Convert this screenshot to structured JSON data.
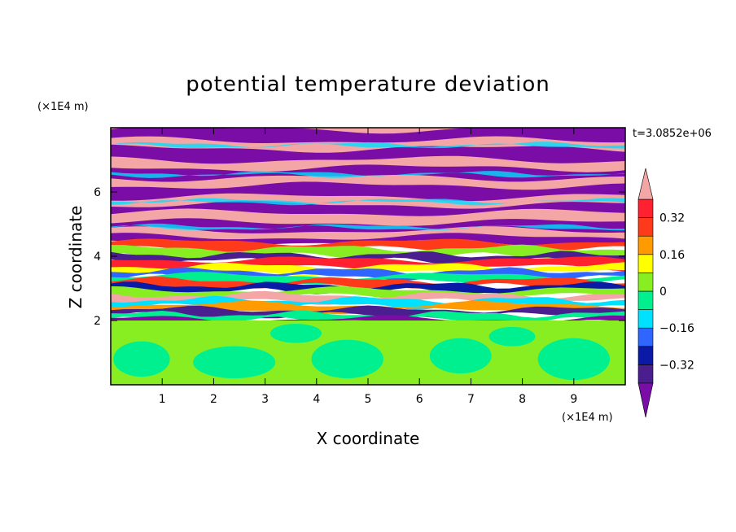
{
  "chart_data": {
    "type": "heatmap",
    "title": "potential temperature deviation",
    "xlabel": "X coordinate",
    "ylabel": "Z coordinate",
    "x_unit": "(×1E4 m)",
    "z_unit": "(×1E4 m)",
    "time_label": "t=3.0852e+06",
    "xlim": [
      0,
      10
    ],
    "zlim": [
      0,
      8
    ],
    "x_ticks": [
      "1",
      "2",
      "3",
      "4",
      "5",
      "6",
      "7",
      "8",
      "9"
    ],
    "z_ticks": [
      "2",
      "4",
      "6"
    ],
    "colorbar": {
      "levels": [
        -0.4,
        -0.32,
        -0.24,
        -0.16,
        -0.08,
        0,
        0.08,
        0.16,
        0.24,
        0.32,
        0.4
      ],
      "labels": [
        "0.32",
        "0.16",
        "0",
        "−0.16",
        "−0.32"
      ],
      "colors": [
        "#7a0da6",
        "#4b1e8f",
        "#0a1aa6",
        "#2f66ff",
        "#00e0ff",
        "#00f090",
        "#88ee22",
        "#ffff00",
        "#ff9a00",
        "#ff3a1a",
        "#ff2030",
        "#f4a6a6"
      ],
      "extend": "both"
    },
    "layers": [
      {
        "z_from": 0,
        "z_to": 2,
        "pattern": "green cellular convective layer (values about 0 to +0.08)"
      },
      {
        "z_from": 2,
        "z_to": 4.5,
        "pattern": "mixed banded layer spanning full color range"
      },
      {
        "z_from": 4.5,
        "z_to": 8,
        "pattern": "alternating purple and pink horizontal bands (values beyond ±0.4)"
      }
    ]
  }
}
